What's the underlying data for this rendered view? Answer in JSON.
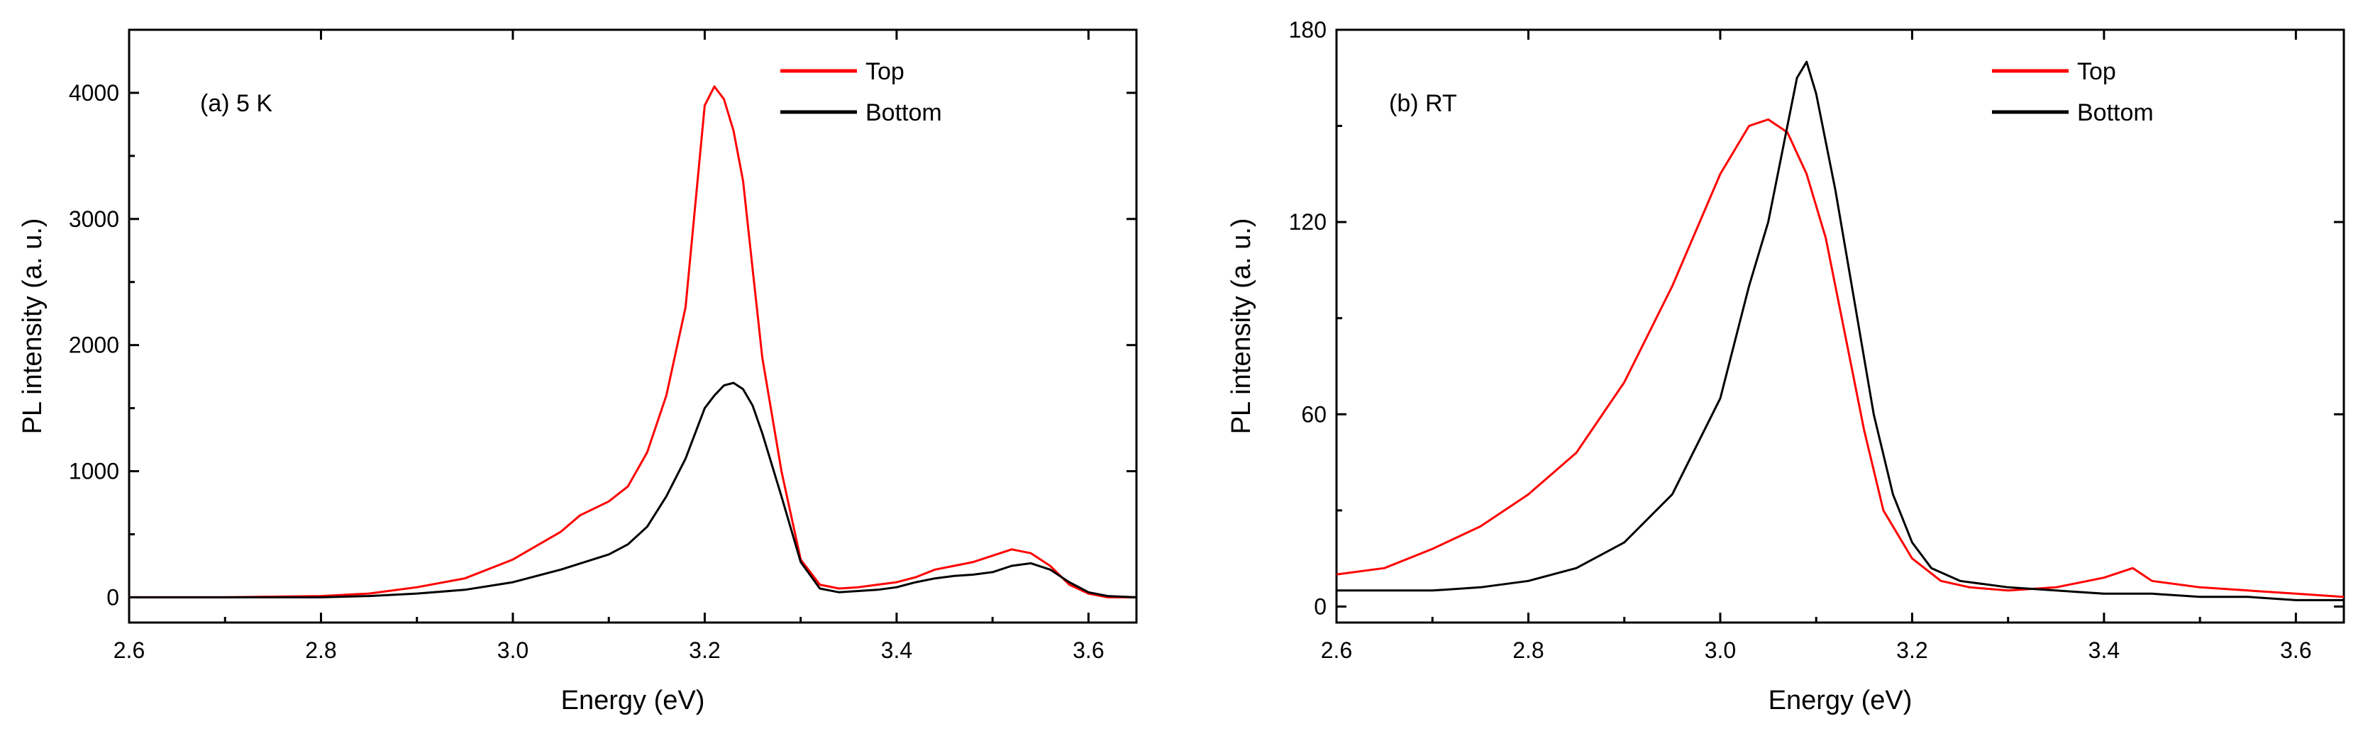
{
  "chart_data": [
    {
      "type": "line",
      "title": "",
      "panel_label": "(a) 5 K",
      "xlabel": "Energy (eV)",
      "ylabel": "PL intensity (a. u.)",
      "xlim": [
        2.6,
        3.65
      ],
      "ylim": [
        -200,
        4500
      ],
      "xticks": [
        2.6,
        2.8,
        3.0,
        3.2,
        3.4,
        3.6
      ],
      "xtick_labels": [
        "2.6",
        "2.8",
        "3.0",
        "3.2",
        "3.4",
        "3.6"
      ],
      "yticks": [
        0,
        1000,
        2000,
        3000,
        4000
      ],
      "ytick_labels": [
        "0",
        "1000",
        "2000",
        "3000",
        "4000"
      ],
      "grid": false,
      "legend_position": "top-right",
      "series": [
        {
          "name": "Top",
          "color": "#ff0000",
          "x": [
            2.6,
            2.7,
            2.8,
            2.85,
            2.9,
            2.95,
            3.0,
            3.05,
            3.07,
            3.1,
            3.12,
            3.14,
            3.16,
            3.18,
            3.19,
            3.2,
            3.21,
            3.22,
            3.23,
            3.24,
            3.25,
            3.26,
            3.28,
            3.3,
            3.32,
            3.34,
            3.36,
            3.38,
            3.4,
            3.42,
            3.44,
            3.46,
            3.48,
            3.5,
            3.52,
            3.54,
            3.56,
            3.58,
            3.6,
            3.62,
            3.65
          ],
          "y": [
            0,
            0,
            10,
            30,
            80,
            150,
            300,
            520,
            650,
            760,
            880,
            1150,
            1600,
            2300,
            3100,
            3900,
            4050,
            3950,
            3700,
            3300,
            2600,
            1900,
            1000,
            300,
            100,
            70,
            80,
            100,
            120,
            160,
            220,
            250,
            280,
            330,
            380,
            350,
            250,
            100,
            30,
            0,
            0
          ]
        },
        {
          "name": "Bottom",
          "color": "#000000",
          "x": [
            2.6,
            2.7,
            2.8,
            2.85,
            2.9,
            2.95,
            3.0,
            3.05,
            3.1,
            3.12,
            3.14,
            3.16,
            3.18,
            3.19,
            3.2,
            3.21,
            3.22,
            3.23,
            3.24,
            3.25,
            3.26,
            3.28,
            3.3,
            3.32,
            3.34,
            3.36,
            3.38,
            3.4,
            3.42,
            3.44,
            3.46,
            3.48,
            3.5,
            3.52,
            3.54,
            3.56,
            3.58,
            3.6,
            3.62,
            3.65
          ],
          "y": [
            0,
            0,
            0,
            10,
            30,
            60,
            120,
            220,
            340,
            420,
            560,
            800,
            1100,
            1300,
            1500,
            1600,
            1680,
            1700,
            1650,
            1520,
            1300,
            800,
            280,
            70,
            40,
            50,
            60,
            80,
            120,
            150,
            170,
            180,
            200,
            250,
            270,
            220,
            120,
            40,
            10,
            0
          ]
        }
      ]
    },
    {
      "type": "line",
      "title": "",
      "panel_label": "(b) RT",
      "xlabel": "Energy (eV)",
      "ylabel": "PL intensity (a. u.)",
      "xlim": [
        2.6,
        3.65
      ],
      "ylim": [
        -5,
        180
      ],
      "xticks": [
        2.6,
        2.8,
        3.0,
        3.2,
        3.4,
        3.6
      ],
      "xtick_labels": [
        "2.6",
        "2.8",
        "3.0",
        "3.2",
        "3.4",
        "3.6"
      ],
      "yticks": [
        0,
        60,
        120,
        180
      ],
      "ytick_labels": [
        "0",
        "60",
        "120",
        "180"
      ],
      "grid": false,
      "legend_position": "top-right",
      "series": [
        {
          "name": "Top",
          "color": "#ff0000",
          "x": [
            2.6,
            2.65,
            2.7,
            2.75,
            2.8,
            2.85,
            2.9,
            2.95,
            3.0,
            3.03,
            3.05,
            3.07,
            3.09,
            3.11,
            3.13,
            3.15,
            3.17,
            3.2,
            3.23,
            3.26,
            3.3,
            3.35,
            3.4,
            3.43,
            3.45,
            3.5,
            3.55,
            3.6,
            3.65
          ],
          "y": [
            10,
            12,
            18,
            25,
            35,
            48,
            70,
            100,
            135,
            150,
            152,
            148,
            135,
            115,
            85,
            55,
            30,
            15,
            8,
            6,
            5,
            6,
            9,
            12,
            8,
            6,
            5,
            4,
            3
          ]
        },
        {
          "name": "Bottom",
          "color": "#000000",
          "x": [
            2.6,
            2.65,
            2.7,
            2.75,
            2.8,
            2.85,
            2.9,
            2.95,
            3.0,
            3.03,
            3.05,
            3.07,
            3.08,
            3.09,
            3.1,
            3.12,
            3.14,
            3.16,
            3.18,
            3.2,
            3.22,
            3.25,
            3.3,
            3.35,
            3.4,
            3.45,
            3.5,
            3.55,
            3.6,
            3.65
          ],
          "y": [
            5,
            5,
            5,
            6,
            8,
            12,
            20,
            35,
            65,
            100,
            120,
            150,
            165,
            170,
            160,
            130,
            95,
            60,
            35,
            20,
            12,
            8,
            6,
            5,
            4,
            4,
            3,
            3,
            2,
            2
          ]
        }
      ]
    }
  ]
}
